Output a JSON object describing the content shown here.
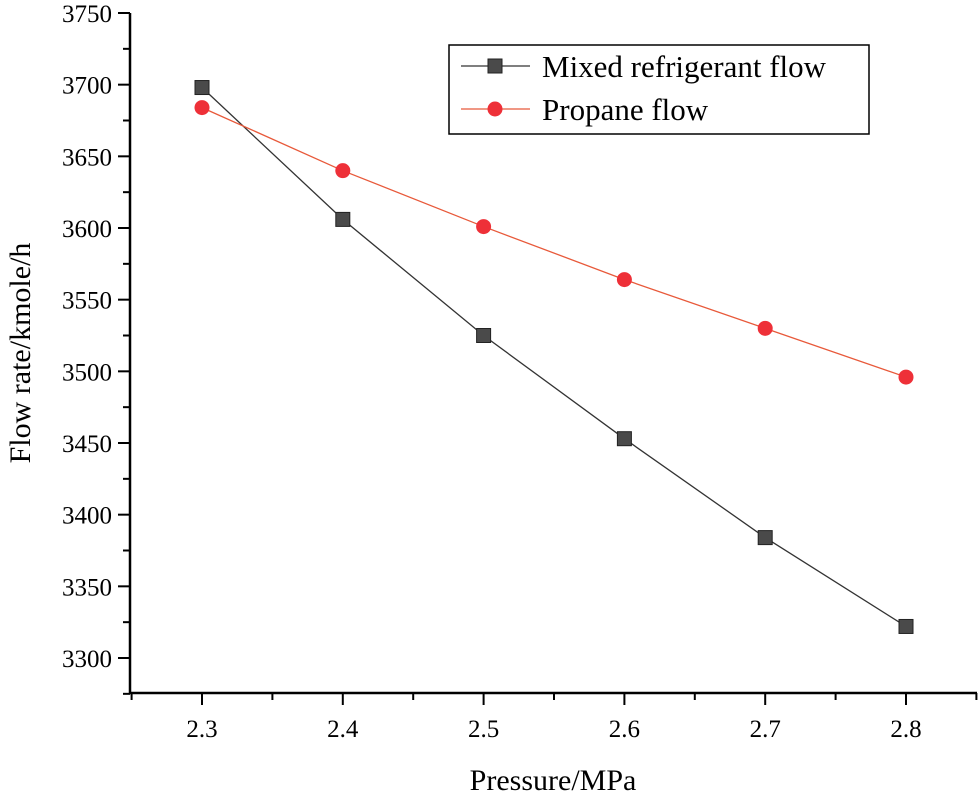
{
  "chart_data": {
    "type": "line",
    "title": "",
    "xlabel": "Pressure/MPa",
    "ylabel": "Flow rate/kmole/h",
    "xlim": [
      2.25,
      2.85
    ],
    "ylim": [
      3275,
      3750
    ],
    "xticks": [
      "2.3",
      "2.4",
      "2.5",
      "2.6",
      "2.7",
      "2.8"
    ],
    "yticks": [
      "3300",
      "3350",
      "3400",
      "3450",
      "3500",
      "3550",
      "3600",
      "3650",
      "3700",
      "3750"
    ],
    "grid": false,
    "legend_position": "top-right",
    "x": [
      2.3,
      2.4,
      2.5,
      2.6,
      2.7,
      2.8
    ],
    "series": [
      {
        "name": "Mixed refrigerant flow",
        "marker": "square",
        "color": "#4a4a4a",
        "line_color": "#333333",
        "values": [
          3698,
          3606,
          3525,
          3453,
          3384,
          3322
        ]
      },
      {
        "name": "Propane flow",
        "marker": "circle",
        "color": "#ee3038",
        "line_color": "#e8593a",
        "values": [
          3684,
          3640,
          3601,
          3564,
          3530,
          3496
        ]
      }
    ]
  }
}
